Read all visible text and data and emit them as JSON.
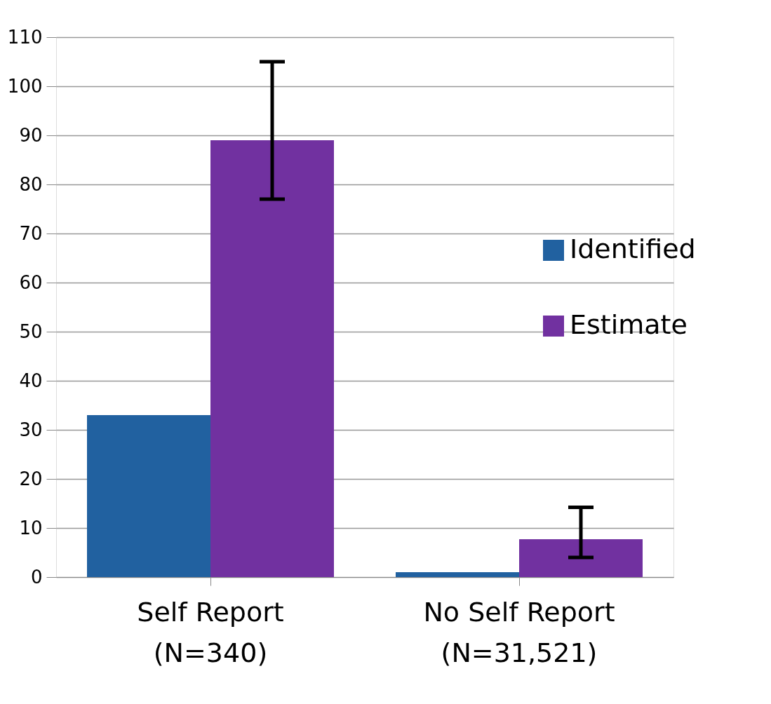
{
  "chart_data": {
    "type": "bar",
    "categories": [
      "Self Report\n(N=340)",
      "No Self Report\n(N=31,521)"
    ],
    "series": [
      {
        "name": "Identified",
        "color": "#2161a0",
        "values": [
          33,
          1
        ]
      },
      {
        "name": "Estimate",
        "color": "#7131a0",
        "values": [
          89,
          7.7
        ],
        "errors": [
          [
            77,
            105
          ],
          [
            4,
            14.2
          ]
        ]
      }
    ],
    "ylim": [
      0,
      110
    ],
    "yticks": [
      0,
      10,
      20,
      30,
      40,
      50,
      60,
      70,
      80,
      90,
      100,
      110
    ],
    "grid": "y",
    "legend": "right"
  }
}
